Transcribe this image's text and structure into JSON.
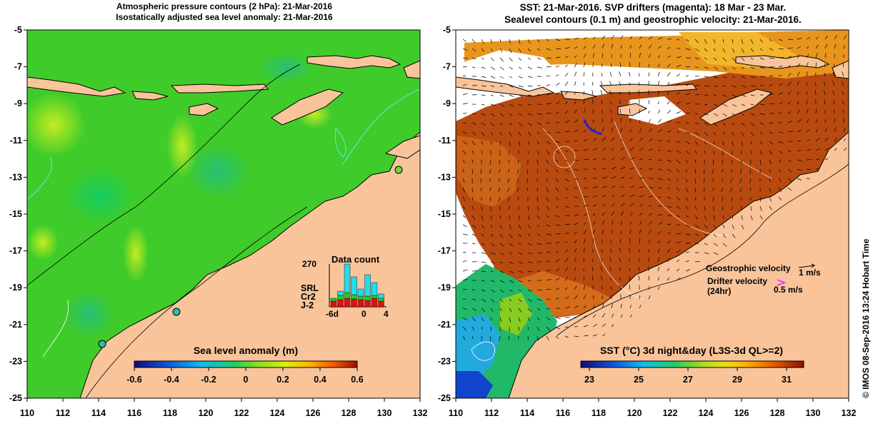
{
  "left_panel": {
    "title_line1": "Atmospheric pressure contours (2 hPa): 21-Mar-2016",
    "title_line2": "Isostatically adjusted sea level anomaly: 21-Mar-2016",
    "colorbar_title": "Sea level anomaly (m)",
    "colorbar_ticks": [
      "-0.6",
      "-0.4",
      "-0.2",
      "0",
      "0.2",
      "0.4",
      "0.6"
    ],
    "data_count": {
      "title": "Data count",
      "max_label": "270",
      "x_ticks": [
        "-6d",
        "0",
        "4"
      ],
      "legend": [
        {
          "name": "SRL",
          "color": "#22ddee"
        },
        {
          "name": "Cr2",
          "color": "#22cc22"
        },
        {
          "name": "J-2",
          "color": "#dd1111"
        }
      ]
    }
  },
  "right_panel": {
    "title_line1": "SST: 21-Mar-2016. SVP drifters (magenta): 18 Mar - 23 Mar.",
    "title_line2": "Sealevel contours (0.1 m) and geostrophic velocity: 21-Mar-2016.",
    "colorbar_title": "SST (°C) 3d night&day (L3S-3d QL>=2)",
    "colorbar_ticks": [
      "23",
      "25",
      "27",
      "29",
      "31"
    ],
    "geostrophic_label": "Geostrophic velocity",
    "geostrophic_scale": "1 m/s",
    "drifter_label_1": "Drifter velocity",
    "drifter_label_2": "(24hr)",
    "drifter_scale": "0.5 m/s"
  },
  "axes": {
    "x_ticks": [
      "110",
      "112",
      "114",
      "116",
      "118",
      "120",
      "122",
      "124",
      "126",
      "128",
      "130",
      "132"
    ],
    "y_ticks": [
      "-5",
      "-7",
      "-9",
      "-11",
      "-13",
      "-15",
      "-17",
      "-19",
      "-21",
      "-23",
      "-25"
    ]
  },
  "credit": "© IMOS 08-Sep-2016 13:24 Hobart Time",
  "colors": {
    "land": "#f9c49a",
    "sla_ocean": "#44cc22",
    "sst_ocean": "#b54a0f"
  }
}
